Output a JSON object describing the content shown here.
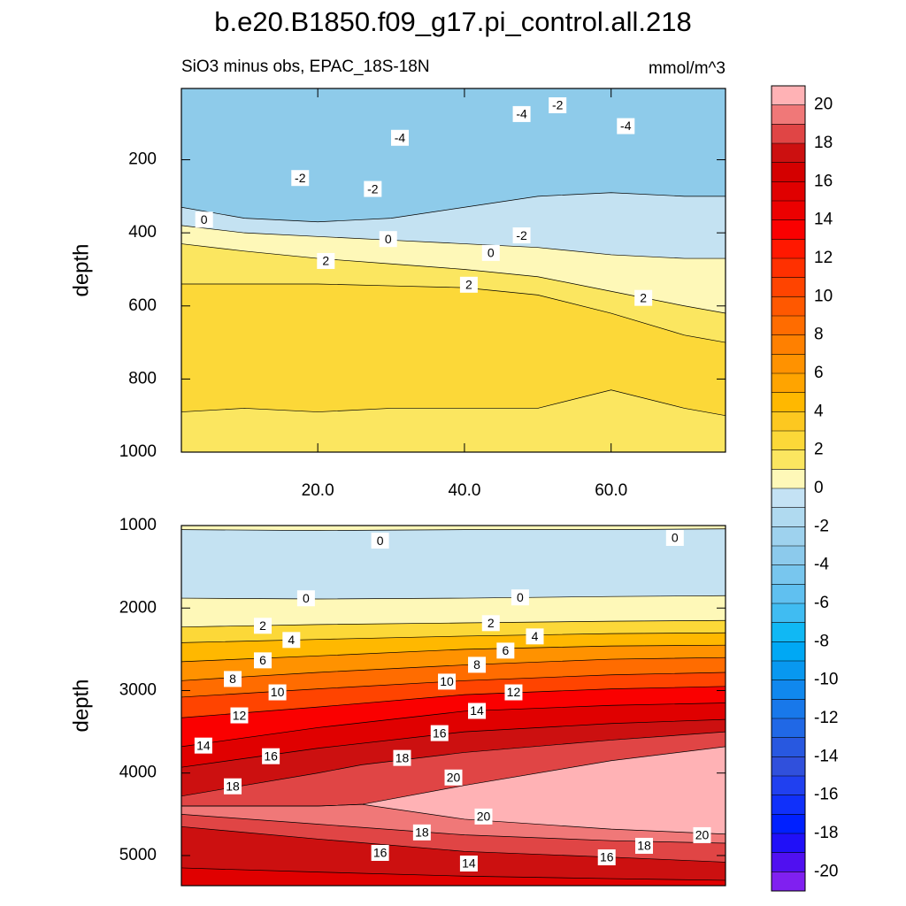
{
  "title": "b.e20.B1850.f09_g17.pi_control.all.218",
  "colorbar": {
    "levels": [
      -20,
      -19,
      -18,
      -17,
      -16,
      -15,
      -14,
      -13,
      -12,
      -11,
      -10,
      -9,
      -8,
      -7,
      -6,
      -5,
      -4,
      -3,
      -2,
      -1,
      0,
      1,
      2,
      3,
      4,
      5,
      6,
      7,
      8,
      9,
      10,
      11,
      12,
      13,
      14,
      15,
      16,
      17,
      18,
      19,
      20
    ],
    "ticks": [
      -20,
      -18,
      -16,
      -14,
      -12,
      -10,
      -8,
      -6,
      -4,
      -2,
      0,
      2,
      4,
      6,
      8,
      10,
      12,
      14,
      16,
      18,
      20
    ],
    "colors": [
      "#8020f0",
      "#5010f0",
      "#2010f8",
      "#0020ff",
      "#1030fa",
      "#2040f0",
      "#3050dc",
      "#2858e0",
      "#2068e6",
      "#1878ea",
      "#1088ee",
      "#0898f0",
      "#00a8f4",
      "#10b8f4",
      "#40bcf2",
      "#60c0f0",
      "#78c6ee",
      "#8ccaec",
      "#9ed2ee",
      "#b0daf0",
      "#c4e2f4",
      "#fef8b8",
      "#fbe660",
      "#fcd838",
      "#fdc820",
      "#ffb800",
      "#ffa400",
      "#ff9200",
      "#ff8000",
      "#ff6c00",
      "#ff5800",
      "#ff4400",
      "#ff3000",
      "#ff1800",
      "#fa0000",
      "#ec0000",
      "#e00000",
      "#d40000",
      "#cc1010",
      "#e04545",
      "#f07878",
      "#ffb2b5"
    ]
  },
  "chart_data": [
    {
      "type": "contour",
      "subtitle": "SiO3 minus obs, EPAC_18S-18N",
      "units": "mmol/m^3",
      "ylabel": "depth",
      "xlim": [
        1.4,
        75.6
      ],
      "ylim": [
        5,
        1000
      ],
      "xticks": [
        {
          "value": 20,
          "label": "20.0"
        },
        {
          "value": 40,
          "label": "40.0"
        },
        {
          "value": 60,
          "label": "60.0"
        }
      ],
      "yticks": [
        200,
        400,
        600,
        800,
        1000
      ],
      "top_color": "#8ecbea",
      "contours": [
        {
          "level": -2,
          "fill": "#c4e2f2",
          "x": [
            1.4,
            10,
            20,
            30,
            40,
            50,
            60,
            70,
            75.6
          ],
          "depth": [
            330,
            360,
            370,
            360,
            330,
            300,
            290,
            300,
            300
          ]
        },
        {
          "level": 0,
          "fill": "#fef8b8",
          "x": [
            1.4,
            10,
            20,
            30,
            40,
            50,
            60,
            70,
            75.6
          ],
          "depth": [
            380,
            400,
            410,
            420,
            430,
            440,
            460,
            470,
            470
          ]
        },
        {
          "level": 2,
          "fill": "#fbe660",
          "x": [
            1.4,
            10,
            20,
            30,
            40,
            50,
            60,
            70,
            75.6
          ],
          "depth": [
            430,
            450,
            470,
            485,
            500,
            520,
            560,
            600,
            620
          ]
        },
        {
          "level": 4,
          "fill": "#fcd838",
          "x": [
            1.4,
            10,
            20,
            30,
            40,
            50,
            60,
            70,
            75.6
          ],
          "depth": [
            540,
            540,
            540,
            545,
            550,
            570,
            620,
            680,
            700
          ]
        },
        {
          "level": 4,
          "fill": "#fbe660",
          "x": [
            1.4,
            10,
            20,
            30,
            40,
            50,
            60,
            70,
            75.6
          ],
          "depth": [
            890,
            880,
            890,
            880,
            880,
            880,
            830,
            880,
            900
          ]
        }
      ],
      "contour_labels": [
        {
          "level": -4,
          "x": 47.8,
          "y": 75
        },
        {
          "level": -2,
          "x": 52.7,
          "y": 51
        },
        {
          "level": -4,
          "x": 31.2,
          "y": 140
        },
        {
          "level": -4,
          "x": 62,
          "y": 108
        },
        {
          "level": -2,
          "x": 17.6,
          "y": 250
        },
        {
          "level": -2,
          "x": 27.5,
          "y": 280
        },
        {
          "level": 0,
          "x": 4.5,
          "y": 364
        },
        {
          "level": 0,
          "x": 29.6,
          "y": 417
        },
        {
          "level": -2,
          "x": 47.8,
          "y": 407
        },
        {
          "level": 0,
          "x": 43.6,
          "y": 455
        },
        {
          "level": 2,
          "x": 21.1,
          "y": 477
        },
        {
          "level": 2,
          "x": 40.6,
          "y": 542
        },
        {
          "level": 2,
          "x": 64.4,
          "y": 578
        }
      ]
    },
    {
      "type": "contour",
      "ylabel": "depth",
      "xlim": [
        1.4,
        75.6
      ],
      "ylim": [
        1000,
        5365
      ],
      "yticks": [
        1000,
        2000,
        3000,
        4000,
        5000
      ],
      "top_color": "#fef8b8",
      "contours": [
        {
          "level": 0,
          "fill": "#c4e2f2",
          "x": [
            1.4,
            20,
            40,
            60,
            75.6
          ],
          "depth": [
            1050,
            1060,
            1050,
            1050,
            1040
          ]
        },
        {
          "level": 0,
          "fill": "#fef8b8",
          "x": [
            1.4,
            20,
            40,
            60,
            75.6
          ],
          "depth": [
            1880,
            1890,
            1880,
            1860,
            1850
          ]
        },
        {
          "level": 2,
          "fill": "#fcd838",
          "x": [
            1.4,
            20,
            40,
            60,
            75.6
          ],
          "depth": [
            2230,
            2200,
            2180,
            2160,
            2150
          ]
        },
        {
          "level": 4,
          "fill": "#ffb800",
          "x": [
            1.4,
            20,
            40,
            60,
            75.6
          ],
          "depth": [
            2420,
            2380,
            2340,
            2310,
            2300
          ]
        },
        {
          "level": 6,
          "fill": "#ff9200",
          "x": [
            1.4,
            20,
            40,
            60,
            75.6
          ],
          "depth": [
            2650,
            2580,
            2500,
            2460,
            2450
          ]
        },
        {
          "level": 8,
          "fill": "#ff6c00",
          "x": [
            1.4,
            20,
            40,
            60,
            75.6
          ],
          "depth": [
            2880,
            2780,
            2690,
            2620,
            2600
          ]
        },
        {
          "level": 10,
          "fill": "#ff4400",
          "x": [
            1.4,
            20,
            40,
            60,
            75.6
          ],
          "depth": [
            3080,
            2980,
            2880,
            2810,
            2780
          ]
        },
        {
          "level": 12,
          "fill": "#fa0000",
          "x": [
            1.4,
            20,
            40,
            60,
            75.6
          ],
          "depth": [
            3330,
            3200,
            3050,
            2980,
            2950
          ]
        },
        {
          "level": 14,
          "fill": "#e00000",
          "x": [
            1.4,
            20,
            40,
            60,
            75.6
          ],
          "depth": [
            3680,
            3450,
            3250,
            3180,
            3150
          ]
        },
        {
          "level": 16,
          "fill": "#cc1010",
          "x": [
            1.4,
            20,
            40,
            60,
            75.6
          ],
          "depth": [
            3930,
            3700,
            3500,
            3400,
            3350
          ]
        },
        {
          "level": 18,
          "fill": "#e04545",
          "x": [
            1.4,
            10,
            20,
            26,
            40,
            60,
            75.6
          ],
          "depth": [
            4280,
            4150,
            4000,
            3900,
            3750,
            3600,
            3500
          ]
        },
        {
          "level": 20,
          "fill": "#ffb2b5",
          "x": [
            1.4,
            20,
            26,
            40,
            60,
            75.6
          ],
          "depth": [
            4400,
            4400,
            4380,
            4150,
            3850,
            3680
          ]
        },
        {
          "level": 20,
          "fill": "#f07878",
          "x": [
            1.4,
            20,
            26,
            40,
            60,
            75.6
          ],
          "depth": [
            4400,
            4400,
            4380,
            4560,
            4680,
            4740
          ]
        },
        {
          "level": 18,
          "fill": "#e04545",
          "x": [
            1.4,
            20,
            40,
            60,
            75.6
          ],
          "depth": [
            4500,
            4620,
            4750,
            4820,
            4850
          ]
        },
        {
          "level": 16,
          "fill": "#cc1010",
          "x": [
            1.4,
            20,
            40,
            60,
            75.6
          ],
          "depth": [
            4650,
            4800,
            4950,
            5020,
            5080
          ]
        },
        {
          "level": 14,
          "fill": "#e00000",
          "x": [
            1.4,
            20,
            40,
            60,
            75.6
          ],
          "depth": [
            5150,
            5200,
            5250,
            5280,
            5300
          ]
        }
      ],
      "contour_labels": [
        {
          "level": 0,
          "x": 28.5,
          "y": 1183
        },
        {
          "level": 0,
          "x": 68.7,
          "y": 1150
        },
        {
          "level": 0,
          "x": 18.4,
          "y": 1882
        },
        {
          "level": 0,
          "x": 47.6,
          "y": 1871
        },
        {
          "level": 2,
          "x": 12.5,
          "y": 2215
        },
        {
          "level": 2,
          "x": 43.6,
          "y": 2183
        },
        {
          "level": 4,
          "x": 16.4,
          "y": 2387
        },
        {
          "level": 4,
          "x": 49.6,
          "y": 2344
        },
        {
          "level": 6,
          "x": 12.5,
          "y": 2634
        },
        {
          "level": 6,
          "x": 45.6,
          "y": 2516
        },
        {
          "level": 8,
          "x": 8.4,
          "y": 2860
        },
        {
          "level": 8,
          "x": 41.7,
          "y": 2688
        },
        {
          "level": 10,
          "x": 14.5,
          "y": 3022
        },
        {
          "level": 10,
          "x": 37.6,
          "y": 2892
        },
        {
          "level": 12,
          "x": 9.3,
          "y": 3301
        },
        {
          "level": 12,
          "x": 46.7,
          "y": 3022
        },
        {
          "level": 14,
          "x": 4.4,
          "y": 3667
        },
        {
          "level": 14,
          "x": 41.7,
          "y": 3247
        },
        {
          "level": 16,
          "x": 13.6,
          "y": 3796
        },
        {
          "level": 16,
          "x": 36.6,
          "y": 3516
        },
        {
          "level": 18,
          "x": 8.4,
          "y": 4161
        },
        {
          "level": 18,
          "x": 31.5,
          "y": 3817
        },
        {
          "level": 20,
          "x": 38.5,
          "y": 4054
        },
        {
          "level": 20,
          "x": 42.6,
          "y": 4527
        },
        {
          "level": 18,
          "x": 34.2,
          "y": 4720
        },
        {
          "level": 18,
          "x": 64.5,
          "y": 4882
        },
        {
          "level": 20,
          "x": 72.4,
          "y": 4753
        },
        {
          "level": 16,
          "x": 28.5,
          "y": 4968
        },
        {
          "level": 16,
          "x": 59.4,
          "y": 5022
        },
        {
          "level": 14,
          "x": 40.6,
          "y": 5097
        }
      ]
    }
  ]
}
